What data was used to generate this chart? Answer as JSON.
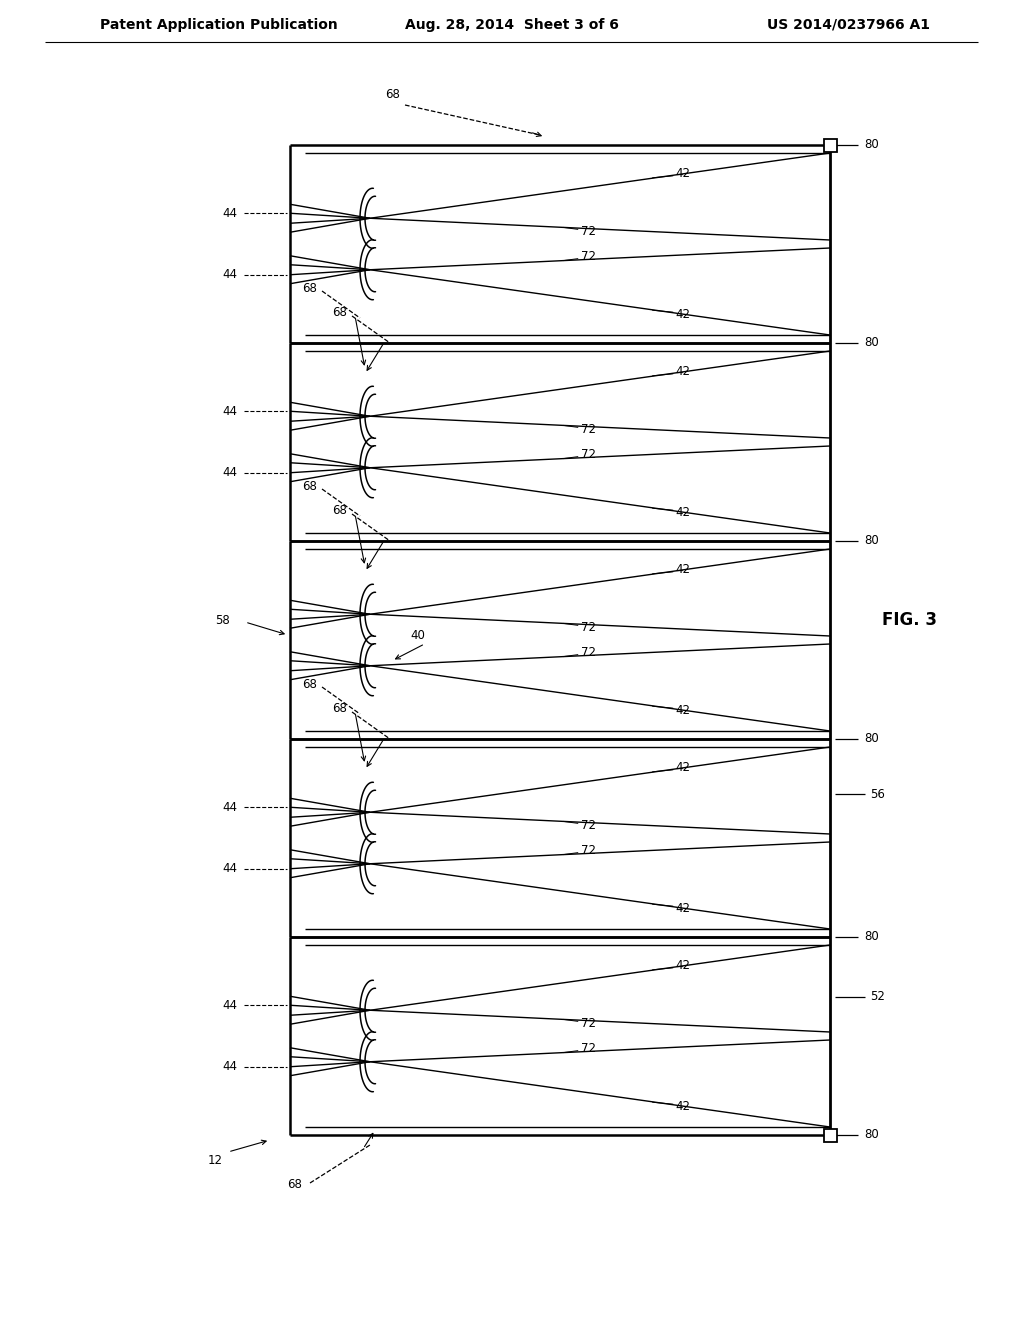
{
  "title_left": "Patent Application Publication",
  "title_center": "Aug. 28, 2014  Sheet 3 of 6",
  "title_right": "US 2014/0237966 A1",
  "fig_label": "FIG. 3",
  "bg_color": "#ffffff",
  "line_color": "#000000",
  "header_font_size": 10,
  "label_font_size": 8.5
}
